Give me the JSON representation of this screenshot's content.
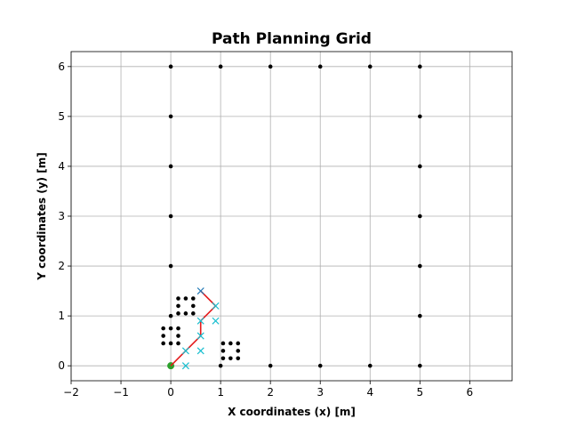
{
  "chart_data": {
    "type": "scatter",
    "title": "Path Planning Grid",
    "xlabel": "X coordinates (x) [m]",
    "ylabel": "Y coordinates (y) [m]",
    "xlim": [
      -2,
      6.85
    ],
    "ylim": [
      -0.3,
      6.3
    ],
    "xticks": [
      -2,
      -1,
      0,
      1,
      2,
      3,
      4,
      5,
      6
    ],
    "yticks": [
      0,
      1,
      2,
      3,
      4,
      5,
      6
    ],
    "grid": true,
    "colors": {
      "obstacles": "#000000",
      "path": "#e41a1c",
      "explored": "#17becf",
      "goal": "#1f77b4",
      "start": "#2ca02c"
    },
    "obstacles": [
      [
        0,
        6
      ],
      [
        1,
        6
      ],
      [
        2,
        6
      ],
      [
        3,
        6
      ],
      [
        4,
        6
      ],
      [
        5,
        6
      ],
      [
        0,
        5
      ],
      [
        0,
        4
      ],
      [
        0,
        3
      ],
      [
        0,
        2
      ],
      [
        0,
        1
      ],
      [
        5,
        5
      ],
      [
        5,
        4
      ],
      [
        5,
        3
      ],
      [
        5,
        2
      ],
      [
        5,
        1
      ],
      [
        5,
        0
      ],
      [
        1,
        0
      ],
      [
        2,
        0
      ],
      [
        3,
        0
      ],
      [
        4,
        0
      ],
      [
        0.15,
        1.35
      ],
      [
        0.3,
        1.35
      ],
      [
        0.45,
        1.35
      ],
      [
        0.15,
        1.2
      ],
      [
        0.45,
        1.2
      ],
      [
        0.15,
        1.05
      ],
      [
        0.3,
        1.05
      ],
      [
        0.45,
        1.05
      ],
      [
        -0.15,
        0.75
      ],
      [
        0,
        0.75
      ],
      [
        0.15,
        0.75
      ],
      [
        -0.15,
        0.6
      ],
      [
        0.15,
        0.6
      ],
      [
        -0.15,
        0.45
      ],
      [
        0,
        0.45
      ],
      [
        0.15,
        0.45
      ],
      [
        1.05,
        0.45
      ],
      [
        1.2,
        0.45
      ],
      [
        1.35,
        0.45
      ],
      [
        1.05,
        0.3
      ],
      [
        1.35,
        0.3
      ],
      [
        1.05,
        0.15
      ],
      [
        1.2,
        0.15
      ],
      [
        1.35,
        0.15
      ]
    ],
    "path": [
      [
        0,
        0
      ],
      [
        0.3,
        0.3
      ],
      [
        0.6,
        0.6
      ],
      [
        0.6,
        0.9
      ],
      [
        0.9,
        1.2
      ],
      [
        0.6,
        1.5
      ]
    ],
    "explored": [
      [
        0.3,
        0
      ],
      [
        0.3,
        0.3
      ],
      [
        0.6,
        0.3
      ],
      [
        0.6,
        0.6
      ],
      [
        0.9,
        0.9
      ],
      [
        0.6,
        0.9
      ],
      [
        0.9,
        1.2
      ]
    ],
    "start": [
      0,
      0
    ],
    "goal": [
      0.6,
      1.5
    ]
  }
}
